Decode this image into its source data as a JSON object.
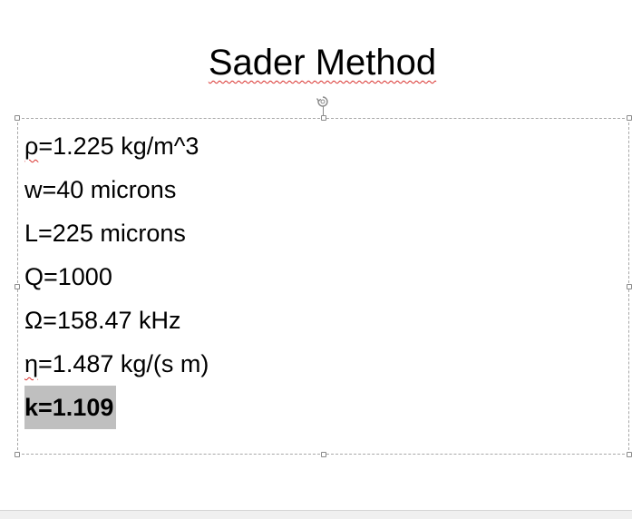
{
  "slide": {
    "title": "Sader Method",
    "lines": [
      {
        "symbol": "ρ",
        "rest": "=1.225 kg/m^3"
      },
      {
        "text": "w=40 microns"
      },
      {
        "text": "L=225 microns"
      },
      {
        "text": "Q=1000"
      },
      {
        "text": "Ω=158.47 kHz"
      },
      {
        "symbol": "η",
        "rest": "=1.487 kg/(s m)"
      },
      {
        "text": "k=1.109"
      }
    ]
  },
  "colors": {
    "highlight": "#bfbfbf",
    "spellcheck": "#d9302c",
    "selection_border": "#a8a8a8"
  }
}
